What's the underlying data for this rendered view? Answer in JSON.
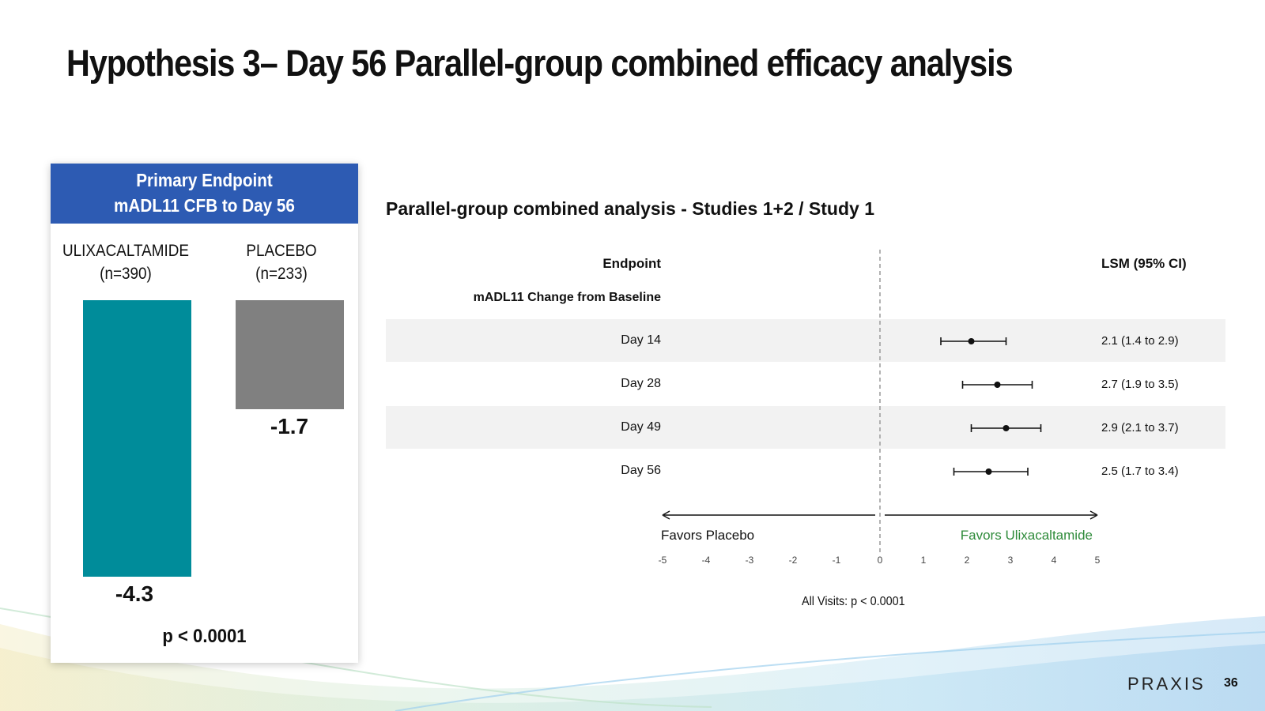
{
  "slide": {
    "title": "Hypothesis 3– Day 56 Parallel-group combined efficacy analysis",
    "page_number": "36",
    "logo_text": "PRAXIS"
  },
  "colors": {
    "header_blue": "#2d5bb3",
    "ulixacaltamide_bar": "#008c9a",
    "placebo_bar": "#808080",
    "favors_ulixacaltamide_text": "#2e8b3a",
    "row_band": "#f2f2f2"
  },
  "chart_data": [
    {
      "type": "bar",
      "title": "Primary Endpoint\nmADL11 CFB to Day 56",
      "header_line1": "Primary Endpoint",
      "header_line2": "mADL11 CFB to Day 56",
      "categories": [
        "ULIXACALTAMIDE",
        "PLACEBO"
      ],
      "category_n": [
        "(n=390)",
        "(n=233)"
      ],
      "values": [
        -4.3,
        -1.7
      ],
      "value_labels": [
        "-4.3",
        "-1.7"
      ],
      "ylim": [
        -4.3,
        0
      ],
      "p_value": "p < 0.0001"
    },
    {
      "type": "scatter",
      "title": "Parallel-group combined analysis - Studies 1+2 / Study 1",
      "column_header_left": "Endpoint",
      "column_header_right": "LSM (95% CI)",
      "section_label": "mADL11 Change from Baseline",
      "rows": [
        {
          "label": "Day 14",
          "estimate": 2.1,
          "lower": 1.4,
          "upper": 2.9,
          "text": "2.1 (1.4 to 2.9)"
        },
        {
          "label": "Day 28",
          "estimate": 2.7,
          "lower": 1.9,
          "upper": 3.5,
          "text": "2.7 (1.9 to 3.5)"
        },
        {
          "label": "Day 49",
          "estimate": 2.9,
          "lower": 2.1,
          "upper": 3.7,
          "text": "2.9 (2.1 to 3.7)"
        },
        {
          "label": "Day 56",
          "estimate": 2.5,
          "lower": 1.7,
          "upper": 3.4,
          "text": "2.5 (1.7 to 3.4)"
        }
      ],
      "xlim": [
        -5,
        5
      ],
      "x_ticks": [
        "-5",
        "-4",
        "-3",
        "-2",
        "-1",
        "0",
        "1",
        "2",
        "3",
        "4",
        "5"
      ],
      "favors_left": "Favors Placebo",
      "favors_right": "Favors Ulixacaltamide",
      "footnote": "All Visits: p < 0.0001"
    }
  ]
}
